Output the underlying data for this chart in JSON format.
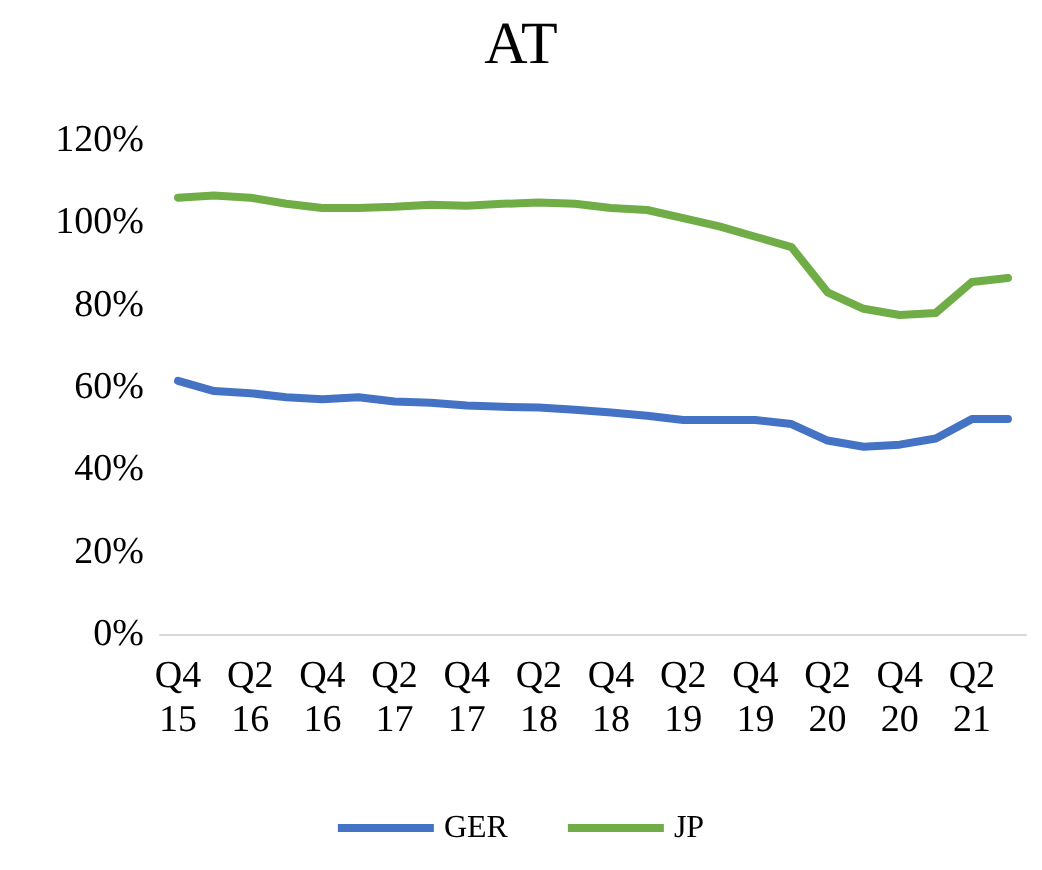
{
  "chart_data": {
    "type": "line",
    "title": "AT",
    "categories": [
      "Q4\n15",
      null,
      "Q2\n16",
      null,
      "Q4\n16",
      null,
      "Q2\n17",
      null,
      "Q4\n17",
      null,
      "Q2\n18",
      null,
      "Q4\n18",
      null,
      "Q2\n19",
      null,
      "Q4\n19",
      null,
      "Q2\n20",
      null,
      "Q4\n20",
      null,
      "Q2\n21",
      null
    ],
    "series": [
      {
        "name": "GER",
        "color": "#4472c4",
        "values": [
          61.5,
          59,
          58.5,
          57.5,
          57,
          57.5,
          56.5,
          56.2,
          55.5,
          55.2,
          55,
          54.5,
          53.8,
          53,
          52,
          52,
          52,
          51,
          47,
          45.5,
          46,
          47.5,
          52.2,
          52.2
        ]
      },
      {
        "name": "JP",
        "color": "#70ad47",
        "values": [
          106,
          106.5,
          106,
          104.5,
          103.5,
          103.5,
          103.8,
          104.3,
          104,
          104.5,
          104.8,
          104.5,
          103.5,
          103,
          101,
          99,
          96.5,
          94,
          83,
          79,
          77.5,
          78,
          85.5,
          86.5
        ]
      }
    ],
    "ylim": [
      0,
      120
    ],
    "yticks": [
      {
        "value": 0,
        "label": "0%"
      },
      {
        "value": 20,
        "label": "20%"
      },
      {
        "value": 40,
        "label": "40%"
      },
      {
        "value": 60,
        "label": "60%"
      },
      {
        "value": 80,
        "label": "80%"
      },
      {
        "value": 100,
        "label": "100%"
      },
      {
        "value": 120,
        "label": "120%"
      }
    ],
    "grid": false,
    "legend": "bottom",
    "marker": "none",
    "line_style": "solid"
  }
}
